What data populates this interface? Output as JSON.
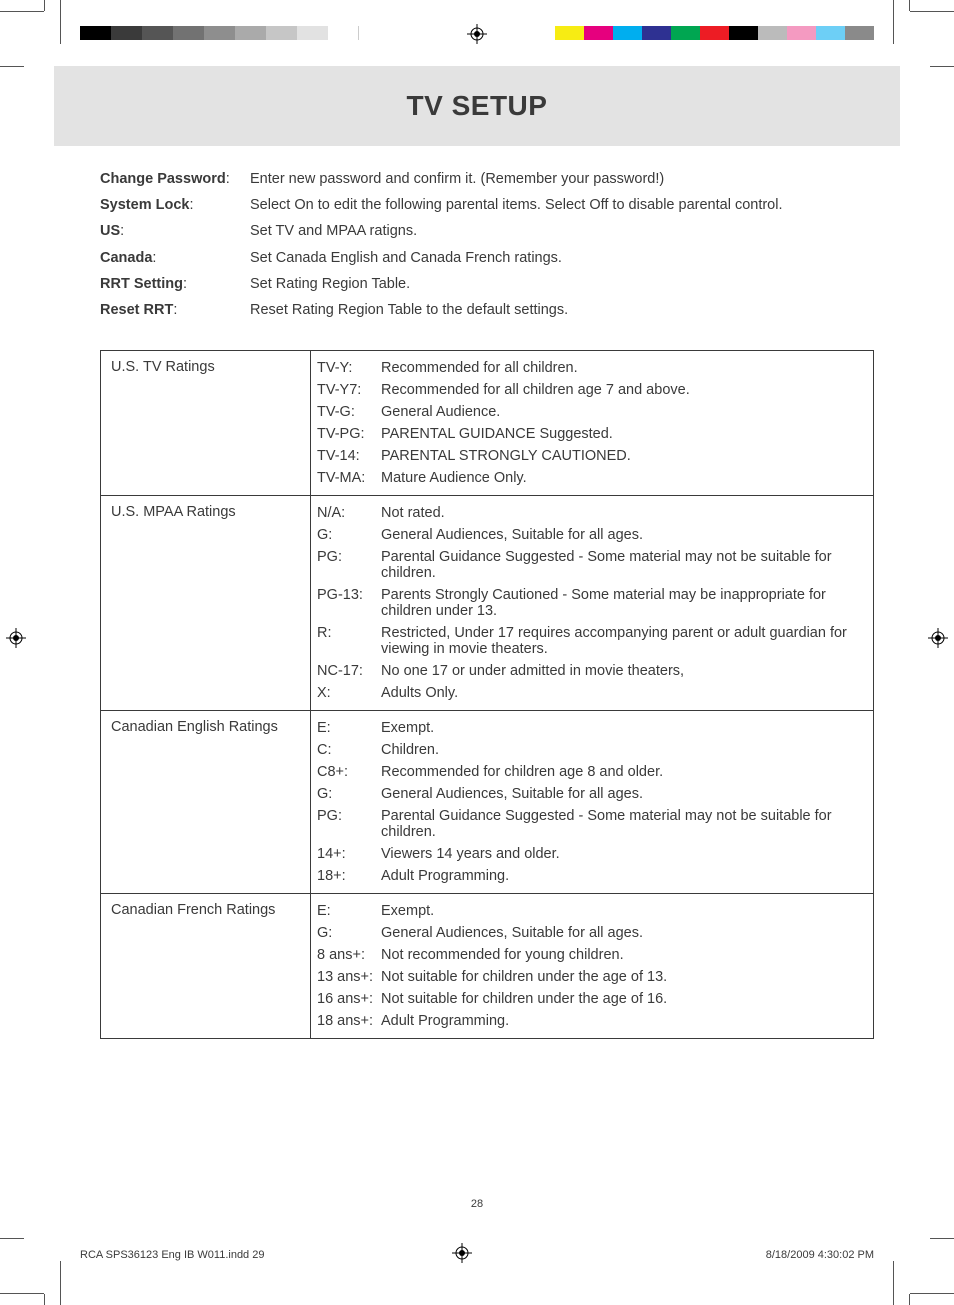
{
  "colors": {
    "text": "#3a3a3a",
    "header_band": "#e3e3e3",
    "border": "#3a3a3a",
    "crop": "#555555"
  },
  "print_marks": {
    "left_bar_colors": [
      "#000000",
      "#3a3a3a",
      "#555555",
      "#727272",
      "#8e8e8e",
      "#aaaaaa",
      "#c6c6c6",
      "#e2e2e2",
      "#ffffff"
    ],
    "left_bar_segment_width": 31,
    "right_bar_colors": [
      "#f7ec13",
      "#e6007e",
      "#00aeef",
      "#2e3192",
      "#00a651",
      "#ed1c24",
      "#000000",
      "#bbbbbb",
      "#f49ac1",
      "#6dcff6",
      "#8a8a8a"
    ],
    "right_bar_segment_width": 29
  },
  "header": {
    "title": "TV SETUP"
  },
  "definitions": [
    {
      "label": "Change Password:",
      "text": "Enter new password and confirm it. (Remember your password!)"
    },
    {
      "label": "System Lock:",
      "text": "Select On to edit the following parental items. Select Off to disable parental control."
    },
    {
      "label": "US:",
      "text": "Set TV and MPAA ratigns."
    },
    {
      "label": "Canada:",
      "text": "Set Canada English and Canada French ratings."
    },
    {
      "label": "RRT Setting:",
      "text": "Set Rating Region Table."
    },
    {
      "label": "Reset RRT:",
      "text": "Reset Rating Region Table to the default settings."
    }
  ],
  "ratings_sections": [
    {
      "label": "U.S. TV Ratings",
      "items": [
        {
          "code": "TV-Y:",
          "desc": "Recommended for all children."
        },
        {
          "code": "TV-Y7:",
          "desc": "Recommended for all children age 7 and above."
        },
        {
          "code": "TV-G:",
          "desc": "General Audience."
        },
        {
          "code": "TV-PG:",
          "desc": "PARENTAL GUIDANCE Suggested."
        },
        {
          "code": "TV-14:",
          "desc": "PARENTAL STRONGLY CAUTIONED."
        },
        {
          "code": "TV-MA:",
          "desc": "Mature Audience Only."
        }
      ]
    },
    {
      "label": "U.S. MPAA Ratings",
      "items": [
        {
          "code": "N/A:",
          "desc": "Not rated."
        },
        {
          "code": "G:",
          "desc": "General Audiences, Suitable for all ages."
        },
        {
          "code": "PG:",
          "desc": "Parental Guidance Suggested - Some material may not be suitable for children."
        },
        {
          "code": "PG-13:",
          "desc": "Parents Strongly Cautioned - Some material may be inappropriate for children under 13."
        },
        {
          "code": "R:",
          "desc": "Restricted, Under 17 requires accompanying parent or adult guardian for viewing in movie theaters."
        },
        {
          "code": "NC-17:",
          "desc": "No one 17 or under admitted in movie theaters,"
        },
        {
          "code": "X:",
          "desc": "Adults Only."
        }
      ]
    },
    {
      "label": "Canadian English Ratings",
      "items": [
        {
          "code": "E:",
          "desc": "Exempt."
        },
        {
          "code": "C:",
          "desc": "Children."
        },
        {
          "code": "C8+:",
          "desc": "Recommended for children age 8 and older."
        },
        {
          "code": "G:",
          "desc": "General Audiences, Suitable for all ages."
        },
        {
          "code": "PG:",
          "desc": "Parental Guidance Suggested - Some material may not be suitable for children."
        },
        {
          "code": "14+:",
          "desc": "Viewers 14 years and older."
        },
        {
          "code": "18+:",
          "desc": "Adult Programming."
        }
      ]
    },
    {
      "label": "Canadian French Ratings",
      "items": [
        {
          "code": "E:",
          "desc": "Exempt."
        },
        {
          "code": "G:",
          "desc": "General Audiences, Suitable for all ages."
        },
        {
          "code": "8 ans+:",
          "desc": "Not recommended for young children."
        },
        {
          "code": "13 ans+:",
          "desc": "Not suitable for children under the age of 13."
        },
        {
          "code": "16 ans+:",
          "desc": "Not suitable for children under the age of 16."
        },
        {
          "code": "18 ans+:",
          "desc": "Adult Programming."
        }
      ]
    }
  ],
  "page_number": "28",
  "footer": {
    "left": "RCA SPS36123 Eng IB W011.indd   29",
    "right": "8/18/2009   4:30:02 PM"
  }
}
